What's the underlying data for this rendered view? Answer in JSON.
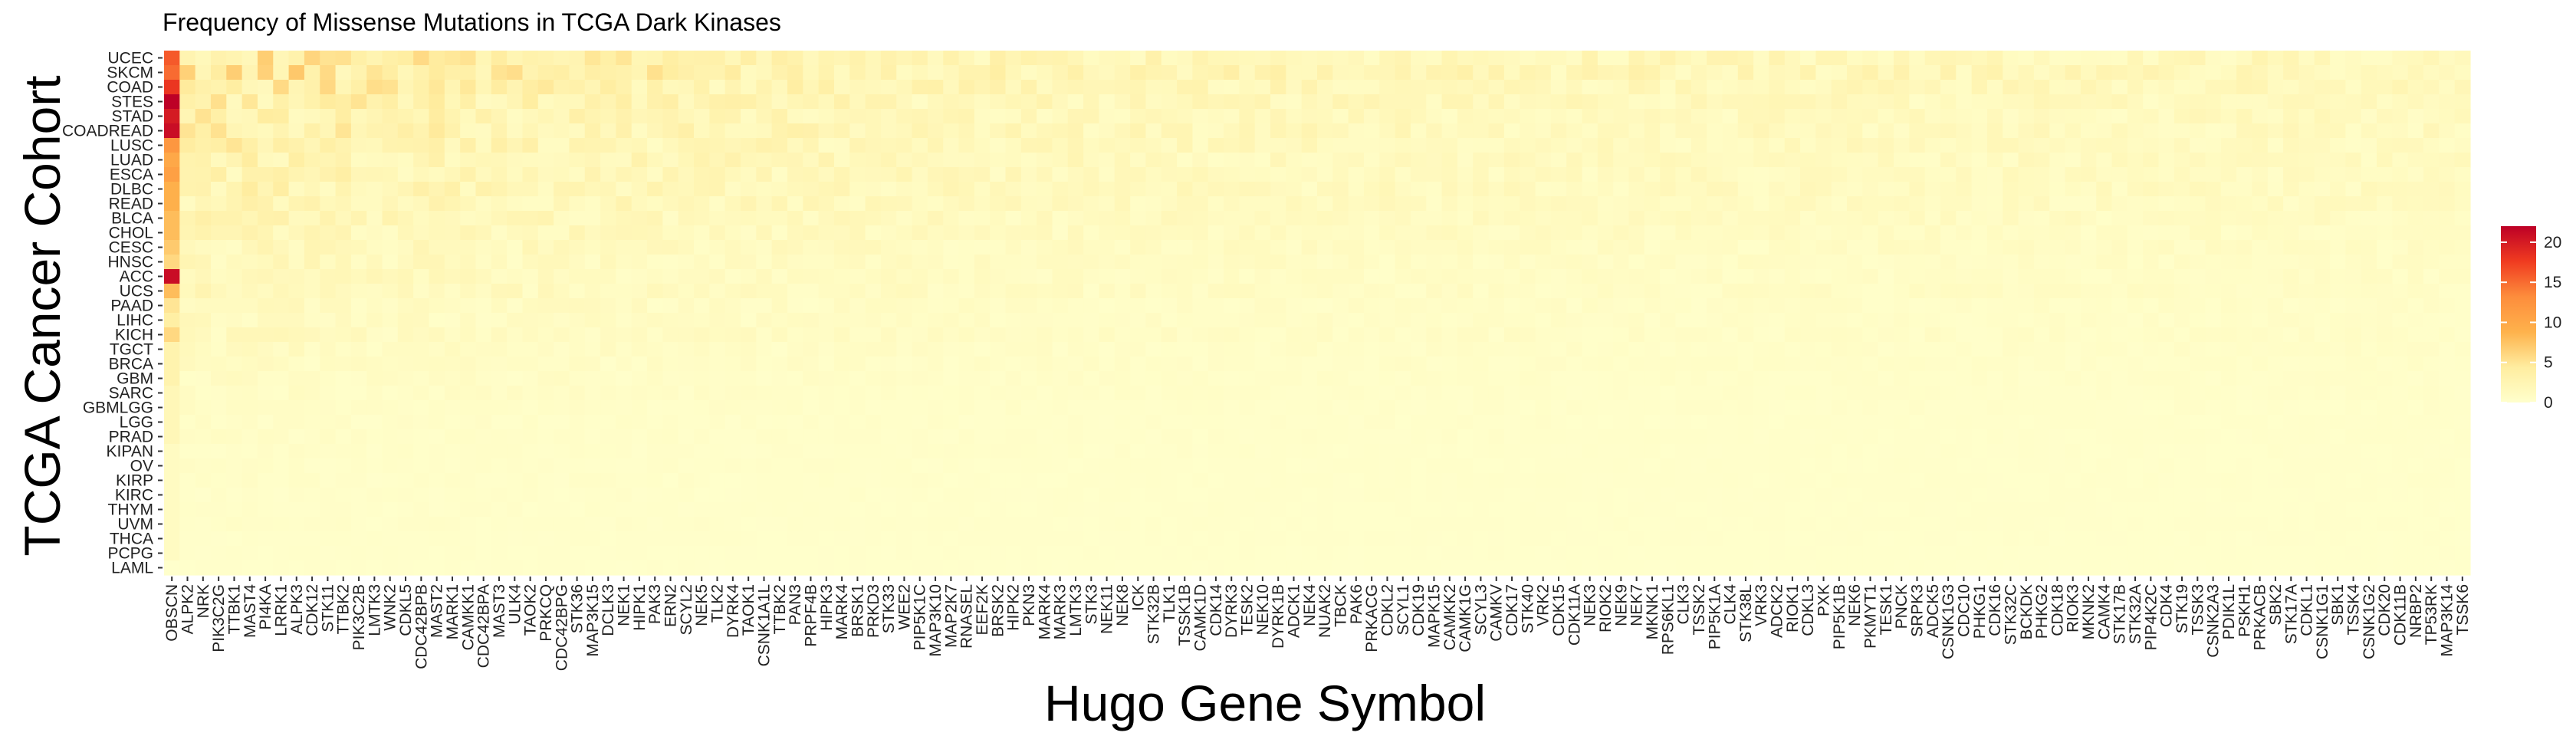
{
  "chart_data": {
    "type": "heatmap",
    "title": "Frequency of Missense Mutations in TCGA Dark Kinases",
    "xlabel": "Hugo Gene Symbol",
    "ylabel": "TCGA Cancer Cohort",
    "rows": [
      "UCEC",
      "SKCM",
      "COAD",
      "STES",
      "STAD",
      "COADREAD",
      "LUSC",
      "LUAD",
      "ESCA",
      "DLBC",
      "READ",
      "BLCA",
      "CHOL",
      "CESC",
      "HNSC",
      "ACC",
      "UCS",
      "PAAD",
      "LIHC",
      "KICH",
      "TGCT",
      "BRCA",
      "GBM",
      "SARC",
      "GBMLGG",
      "LGG",
      "PRAD",
      "KIPAN",
      "OV",
      "KIRP",
      "KIRC",
      "THYM",
      "UVM",
      "THCA",
      "PCPG",
      "LAML"
    ],
    "columns": [
      "OBSCN",
      "ALPK2",
      "NRK",
      "PIK3C2G",
      "TTBK1",
      "MAST4",
      "PI4KA",
      "LRRK1",
      "ALPK3",
      "CDK12",
      "STK11",
      "TTBK2",
      "PIK3C2B",
      "LMTK3",
      "WNK2",
      "CDKL5",
      "CDC42BPB",
      "MAST2",
      "MARK1",
      "CAMKK1",
      "CDC42BPA",
      "MAST3",
      "ULK4",
      "TAOK2",
      "PRKCQ",
      "CDC42BPG",
      "STK36",
      "MAP3K15",
      "DCLK3",
      "NEK1",
      "HIPK1",
      "PAK3",
      "ERN2",
      "SCYL2",
      "NEK5",
      "TLK2",
      "DYRK4",
      "TAOK1",
      "CSNK1A1L",
      "TTBK2",
      "PAN3",
      "PRPF4B",
      "HIPK3",
      "MARK4",
      "BRSK1",
      "PRKD3",
      "STK33",
      "WEE2",
      "PIP5K1C",
      "MAP3K10",
      "MAP2K7",
      "RNASEL",
      "EEF2K",
      "BRSK2",
      "HIPK2",
      "PKN3",
      "MARK4",
      "MARK3",
      "LMTK3",
      "STK3",
      "NEK11",
      "NEK8",
      "ICK",
      "STK32B",
      "TLK1",
      "TSSK1B",
      "CAMK1D",
      "CDK14",
      "DYRK3",
      "TESK2",
      "NEK10",
      "DYRK1B",
      "ADCK1",
      "NEK4",
      "NUAK2",
      "TBCK",
      "PAK6",
      "PRKACG",
      "CDKL2",
      "SCYL1",
      "CDK19",
      "MAPK15",
      "CAMKK2",
      "CAMK1G",
      "SCYL3",
      "CAMKV",
      "CDK17",
      "STK40",
      "VRK2",
      "CDK15",
      "CDK11A",
      "NEK3",
      "RIOK2",
      "NEK9",
      "NEK7",
      "MKNK1",
      "RPS6KL1",
      "CLK3",
      "TSSK2",
      "PIP5K1A",
      "CLK4",
      "STK38L",
      "VRK3",
      "ADCK2",
      "RIOK1",
      "CDKL3",
      "PXK",
      "PIP5K1B",
      "NEK6",
      "PKMYT1",
      "TESK1",
      "PNCK",
      "SRPK3",
      "ADCK5",
      "CSNK1G3",
      "CDC10",
      "PHKG1",
      "CDK16",
      "STK32C",
      "BCKDK",
      "PHKG2",
      "CDK18",
      "RIOK3",
      "MKNK2",
      "CAMK4",
      "STK17B",
      "STK32A",
      "PIP4K2C",
      "CDK4",
      "STK19",
      "TSSK3",
      "CSNK2A3",
      "PDIK1L",
      "PSKH1",
      "PRKACB",
      "SBK2",
      "STK17A",
      "CDKL1",
      "CSNK1G1",
      "SBK1",
      "TSSK4",
      "CSNK1G2",
      "CDK20",
      "CDK11B",
      "NRBP2",
      "TP53RK",
      "MAP3K14",
      "TSSK6"
    ],
    "zlim": [
      0,
      22
    ],
    "legend": {
      "ticks": [
        0,
        5,
        10,
        15,
        20
      ],
      "placement": "right"
    },
    "colors": {
      "low": "#FFFFCC",
      "mid1": "#FFEDA0",
      "mid2": "#FEB24C",
      "mid3": "#FD8D3C",
      "mid4": "#F03B20",
      "high": "#BD0026"
    },
    "row_base": [
      4.2,
      4.6,
      3.9,
      3.4,
      3.1,
      3.3,
      3.0,
      2.8,
      2.6,
      2.7,
      2.4,
      2.2,
      2.0,
      1.8,
      1.6,
      1.5,
      1.6,
      1.2,
      1.1,
      1.3,
      1.0,
      0.9,
      0.8,
      0.7,
      0.6,
      0.5,
      0.5,
      0.45,
      0.4,
      0.4,
      0.35,
      0.3,
      0.35,
      0.25,
      0.2,
      0.15
    ],
    "first_col_values": [
      16,
      15,
      18,
      22,
      20,
      21,
      12,
      10,
      11,
      9,
      9,
      8,
      8,
      7,
      6,
      21,
      8,
      5,
      4,
      6,
      3,
      3,
      3,
      2,
      2,
      2,
      2,
      1,
      1,
      1,
      1,
      1,
      1,
      1,
      1,
      0
    ]
  }
}
